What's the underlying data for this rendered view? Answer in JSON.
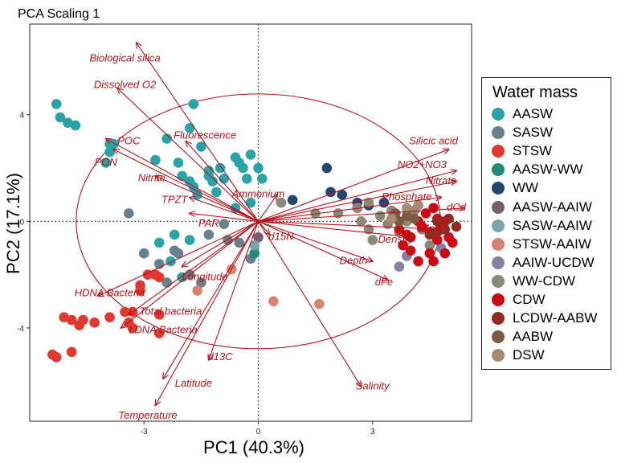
{
  "chart_data": {
    "type": "scatter",
    "title": "PCA Scaling 1",
    "xlabel": "PC1 (40.3%)",
    "ylabel": "PC2 (17.1%)",
    "xlim": [
      -6.0,
      5.6
    ],
    "ylim": [
      -7.5,
      7.4
    ],
    "xticks": [
      -3,
      0,
      3
    ],
    "yticks": [
      -4,
      0,
      4
    ],
    "zero_lines": "dotted",
    "grid": false,
    "circle": {
      "cx": 0,
      "cy": 0,
      "r": 4.78
    },
    "legend": {
      "title": "Water mass",
      "position": "right"
    },
    "colors": {
      "AASW": "#2aa3a8",
      "SASW": "#6a7f8c",
      "STSW": "#e0392f",
      "AASW-WW": "#1f8a78",
      "WW": "#23486e",
      "AASW-AAIW": "#7a5c6e",
      "SASW-AAIW": "#7aa3ad",
      "STSW-AAIW": "#d9826f",
      "AAIW-UCDW": "#8580a6",
      "WW-CDW": "#8c8878",
      "CDW": "#cc0a14",
      "LCDW-AABW": "#922a22",
      "AABW": "#7a5a45",
      "DSW": "#a88a72"
    },
    "series": [
      {
        "name": "AASW",
        "points": [
          [
            -5.3,
            4.4
          ],
          [
            -5.2,
            3.9
          ],
          [
            -5.0,
            3.7
          ],
          [
            -4.8,
            3.6
          ],
          [
            -3.9,
            2.9
          ],
          [
            -3.8,
            2.9
          ],
          [
            -3.9,
            2.6
          ],
          [
            -4.0,
            2.2
          ],
          [
            -2.7,
            2.3
          ],
          [
            -2.4,
            3.1
          ],
          [
            -1.8,
            3.5
          ],
          [
            -1.7,
            4.4
          ],
          [
            -1.5,
            2.8
          ],
          [
            -1.3,
            1.9
          ],
          [
            -2.1,
            2.2
          ],
          [
            -2.0,
            1.7
          ],
          [
            -1.8,
            1.5
          ],
          [
            -1.7,
            1.3
          ],
          [
            -1.6,
            1.0
          ],
          [
            -1.3,
            1.7
          ],
          [
            -1.2,
            1.5
          ],
          [
            -1.1,
            1.1
          ],
          [
            -1.0,
            2.0
          ],
          [
            -0.9,
            1.6
          ],
          [
            -0.6,
            2.4
          ],
          [
            -0.5,
            2.2
          ],
          [
            -0.4,
            2.0
          ],
          [
            -0.3,
            1.6
          ],
          [
            -0.2,
            2.5
          ],
          [
            0.0,
            2.0
          ],
          [
            0.1,
            1.6
          ],
          [
            -2.2,
            -0.5
          ],
          [
            -2.6,
            -0.8
          ],
          [
            -1.8,
            -0.7
          ],
          [
            -2.3,
            -1.5
          ],
          [
            -2.0,
            -2.1
          ],
          [
            -0.6,
            0.5
          ],
          [
            -0.2,
            0.7
          ]
        ]
      },
      {
        "name": "SASW",
        "points": [
          [
            -3.4,
            0.3
          ],
          [
            -3.0,
            -1.2
          ],
          [
            -2.6,
            -1.6
          ],
          [
            -2.2,
            -1.1
          ],
          [
            -2.1,
            -1.2
          ],
          [
            -1.8,
            -2.0
          ],
          [
            -1.5,
            -2.3
          ],
          [
            -2.4,
            -2.3
          ],
          [
            -0.8,
            -0.7
          ],
          [
            -1.3,
            -0.5
          ],
          [
            -0.9,
            -0.1
          ],
          [
            -0.5,
            -0.8
          ],
          [
            -0.2,
            -1.4
          ]
        ]
      },
      {
        "name": "STSW",
        "points": [
          [
            -5.4,
            -5.0
          ],
          [
            -5.3,
            -5.1
          ],
          [
            -4.9,
            -4.9
          ],
          [
            -5.1,
            -3.6
          ],
          [
            -4.9,
            -3.7
          ],
          [
            -4.7,
            -3.9
          ],
          [
            -4.6,
            -3.7
          ],
          [
            -4.3,
            -3.8
          ],
          [
            -3.9,
            -3.6
          ],
          [
            -3.5,
            -3.4
          ],
          [
            -3.4,
            -3.8
          ],
          [
            -3.3,
            -4.0
          ],
          [
            -2.6,
            -4.2
          ],
          [
            -2.6,
            -3.5
          ],
          [
            -2.9,
            -2.0
          ],
          [
            -2.7,
            -2.0
          ],
          [
            -2.6,
            -2.1
          ],
          [
            -3.1,
            -2.4
          ],
          [
            -3.1,
            -2.6
          ],
          [
            -3.3,
            -3.4
          ]
        ]
      },
      {
        "name": "AASW-WW",
        "points": [
          [
            -0.1,
            -1.2
          ]
        ]
      },
      {
        "name": "WW",
        "points": [
          [
            0.9,
            0.8
          ],
          [
            1.8,
            2.0
          ],
          [
            1.9,
            1.1
          ],
          [
            2.2,
            1.0
          ],
          [
            2.6,
            0.7
          ],
          [
            3.3,
            0.7
          ],
          [
            2.9,
            0.6
          ]
        ]
      },
      {
        "name": "AASW-AAIW",
        "points": [
          [
            0.0,
            -0.6
          ]
        ]
      },
      {
        "name": "SASW-AAIW",
        "points": [
          [
            -0.1,
            -0.9
          ]
        ]
      },
      {
        "name": "STSW-AAIW",
        "points": [
          [
            0.4,
            -3.0
          ],
          [
            1.6,
            -3.1
          ],
          [
            -1.6,
            -2.6
          ],
          [
            -0.7,
            -1.8
          ]
        ]
      },
      {
        "name": "AAIW-UCDW",
        "points": [
          [
            3.7,
            -1.7
          ],
          [
            3.9,
            -1.3
          ],
          [
            4.8,
            -1.0
          ]
        ]
      },
      {
        "name": "WW-CDW",
        "points": [
          [
            1.5,
            0.3
          ],
          [
            2.1,
            0.3
          ],
          [
            2.6,
            0.5
          ],
          [
            2.7,
            0.0
          ],
          [
            2.9,
            -0.3
          ],
          [
            3.0,
            -0.7
          ],
          [
            3.2,
            0.2
          ],
          [
            3.5,
            0.4
          ],
          [
            3.6,
            0.1
          ],
          [
            3.7,
            -0.4
          ],
          [
            3.9,
            0.0
          ],
          [
            4.1,
            0.4
          ],
          [
            4.3,
            -0.3
          ],
          [
            4.5,
            -0.9
          ],
          [
            2.9,
            0.7
          ],
          [
            3.4,
            -0.1
          ],
          [
            0.6,
            0.7
          ]
        ]
      },
      {
        "name": "CDW",
        "points": [
          [
            3.8,
            -0.9
          ],
          [
            4.0,
            -1.1
          ],
          [
            4.2,
            -1.5
          ],
          [
            4.6,
            -1.5
          ],
          [
            4.5,
            -1.2
          ],
          [
            4.7,
            -0.7
          ],
          [
            4.8,
            -0.3
          ],
          [
            4.9,
            0.0
          ],
          [
            5.0,
            -0.6
          ],
          [
            5.1,
            -0.8
          ],
          [
            4.9,
            -1.2
          ],
          [
            4.5,
            -0.4
          ],
          [
            4.7,
            0.1
          ],
          [
            4.6,
            0.5
          ],
          [
            4.4,
            0.3
          ],
          [
            4.3,
            -0.2
          ],
          [
            4.2,
            0.0
          ],
          [
            4.0,
            -0.6
          ],
          [
            3.9,
            -0.5
          ],
          [
            3.7,
            -0.3
          ]
        ]
      },
      {
        "name": "LCDW-AABW",
        "points": [
          [
            4.7,
            0.0
          ],
          [
            5.0,
            0.1
          ],
          [
            4.9,
            -0.3
          ],
          [
            4.7,
            -0.4
          ],
          [
            4.5,
            -0.5
          ],
          [
            5.2,
            -0.2
          ]
        ]
      },
      {
        "name": "AABW",
        "points": [
          [
            3.6,
            0.3
          ],
          [
            3.7,
            0.0
          ],
          [
            3.9,
            0.2
          ],
          [
            4.1,
            0.1
          ]
        ]
      },
      {
        "name": "DSW",
        "points": [
          [
            3.9,
            0.5
          ],
          [
            3.5,
            0.1
          ],
          [
            4.2,
            0.6
          ]
        ]
      }
    ],
    "loadings": [
      {
        "name": "Biological silica",
        "x": -3.2,
        "y": 6.7,
        "lx": -3.5,
        "ly": 6.1
      },
      {
        "name": "Dissolved O2",
        "x": -3.7,
        "y": 5.0,
        "lx": -3.5,
        "ly": 5.1
      },
      {
        "name": "POC",
        "x": -4.0,
        "y": 3.1,
        "lx": -3.4,
        "ly": 3.0
      },
      {
        "name": "PON",
        "x": -3.8,
        "y": 2.7,
        "lx": -4.0,
        "ly": 2.2
      },
      {
        "name": "Fluorescence",
        "x": -1.9,
        "y": 3.0,
        "lx": -1.4,
        "ly": 3.2
      },
      {
        "name": "Nitrite",
        "x": -2.7,
        "y": 1.7,
        "lx": -2.8,
        "ly": 1.6
      },
      {
        "name": "TPZT",
        "x": -1.8,
        "y": 0.9,
        "lx": -2.2,
        "ly": 0.8
      },
      {
        "name": "PAR",
        "x": -1.8,
        "y": 0.3,
        "lx": -1.3,
        "ly": -0.1
      },
      {
        "name": "Ammonium",
        "x": 0.5,
        "y": 1.0,
        "lx": 0.0,
        "ly": 1.0
      },
      {
        "name": "d15N",
        "x": 0.3,
        "y": -0.5,
        "lx": 0.6,
        "ly": -0.6
      },
      {
        "name": "Silicic acid",
        "x": 5.0,
        "y": 2.7,
        "lx": 4.6,
        "ly": 3.0
      },
      {
        "name": "NO2+NO3",
        "x": 5.2,
        "y": 1.9,
        "lx": 4.3,
        "ly": 2.1
      },
      {
        "name": "Nitrate",
        "x": 5.2,
        "y": 1.5,
        "lx": 4.8,
        "ly": 1.5
      },
      {
        "name": "Phosphate",
        "x": 4.8,
        "y": 0.9,
        "lx": 3.9,
        "ly": 0.9
      },
      {
        "name": "dCd",
        "x": 5.4,
        "y": 0.5,
        "lx": 5.2,
        "ly": 0.5
      },
      {
        "name": "dZn",
        "x": 4.8,
        "y": -0.3,
        "lx": 4.4,
        "ly": -0.3
      },
      {
        "name": "Density",
        "x": 4.1,
        "y": -0.6,
        "lx": 3.6,
        "ly": -0.7
      },
      {
        "name": "Depth",
        "x": 3.0,
        "y": -1.5,
        "lx": 2.5,
        "ly": -1.5
      },
      {
        "name": "dFe",
        "x": 3.4,
        "y": -2.2,
        "lx": 3.3,
        "ly": -2.3
      },
      {
        "name": "Salinity",
        "x": 2.7,
        "y": -6.2,
        "lx": 3.0,
        "ly": -6.2
      },
      {
        "name": "Longitude",
        "x": -2.0,
        "y": -1.7,
        "lx": -1.4,
        "ly": -2.1
      },
      {
        "name": "HDNA Bacteria",
        "x": -4.2,
        "y": -2.8,
        "lx": -3.9,
        "ly": -2.7
      },
      {
        "name": "Total bacteria",
        "x": -3.4,
        "y": -3.5,
        "lx": -2.3,
        "ly": -3.4
      },
      {
        "name": "LDNA Bacteria",
        "x": -3.6,
        "y": -4.0,
        "lx": -2.5,
        "ly": -4.1
      },
      {
        "name": "d13C",
        "x": -1.3,
        "y": -5.2,
        "lx": -1.0,
        "ly": -5.1
      },
      {
        "name": "Latitude",
        "x": -2.5,
        "y": -5.9,
        "lx": -1.7,
        "ly": -6.1
      },
      {
        "name": "Temperature",
        "x": -2.7,
        "y": -6.9,
        "lx": -2.9,
        "ly": -7.3
      }
    ]
  }
}
